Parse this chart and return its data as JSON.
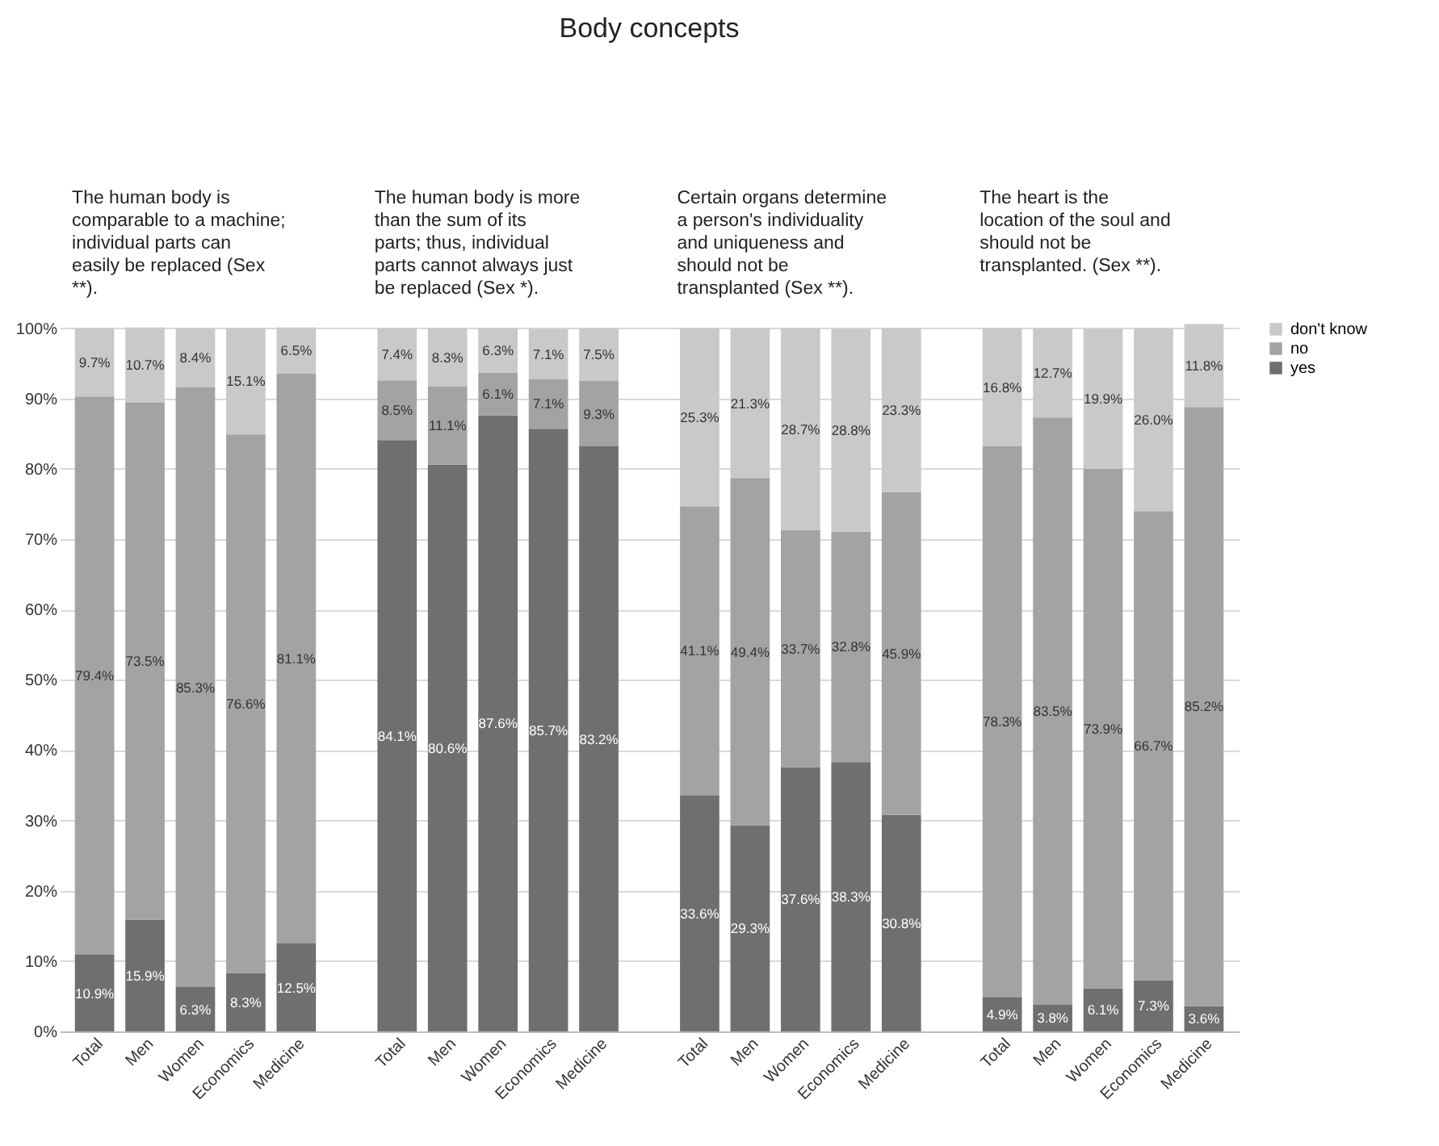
{
  "chart_data": {
    "type": "bar",
    "stacked": true,
    "title": "Body concepts",
    "annotations": [
      "The human body is comparable to a machine; individual parts can easily be replaced (Sex **).",
      "The human body is more than the sum of its parts; thus, individual parts cannot always just be replaced (Sex *).",
      "Certain organs determine a person's individuality and uniqueness and should not be transplanted (Sex **).",
      "The heart is the location of the soul and should not be transplanted. (Sex **)."
    ],
    "categories": [
      "Total",
      "Men",
      "Women",
      "Economics",
      "Medicine",
      null,
      "Total",
      "Men",
      "Women",
      "Economics",
      "Medicine",
      null,
      "Total",
      "Men",
      "Women",
      "Economics",
      "Medicine",
      null,
      "Total",
      "Men",
      "Women",
      "Economics",
      "Medicine"
    ],
    "ylim": [
      0,
      101
    ],
    "yticks": [
      {
        "value": 0,
        "label": "0%"
      },
      {
        "value": 10,
        "label": "10%"
      },
      {
        "value": 20,
        "label": "20%"
      },
      {
        "value": 30,
        "label": "30%"
      },
      {
        "value": 40,
        "label": "40%"
      },
      {
        "value": 50,
        "label": "50%"
      },
      {
        "value": 60,
        "label": "60%"
      },
      {
        "value": 70,
        "label": "70%"
      },
      {
        "value": 80,
        "label": "80%"
      },
      {
        "value": 90,
        "label": "90%"
      },
      {
        "value": 100,
        "label": "100%"
      }
    ],
    "grid": "y",
    "legend": "right",
    "series": [
      {
        "name": "yes",
        "color": "#6f6f6f",
        "values": [
          10.9,
          15.9,
          6.3,
          8.3,
          12.5,
          null,
          84.1,
          80.6,
          87.6,
          85.7,
          83.2,
          null,
          33.6,
          29.3,
          37.6,
          38.3,
          30.8,
          null,
          4.9,
          3.8,
          6.1,
          7.3,
          3.6
        ],
        "value_labels": [
          "10.9%",
          "15.9%",
          "6.3%",
          "8.3%",
          "12.5%",
          null,
          "84.1%",
          "80.6%",
          "87.6%",
          "85.7%",
          "83.2%",
          null,
          "33.6%",
          "29.3%",
          "37.6%",
          "38.3%",
          "30.8%",
          null,
          "4.9%",
          "3.8%",
          "6.1%",
          "7.3%",
          "3.6%"
        ]
      },
      {
        "name": "no",
        "color": "#a3a3a3",
        "values": [
          79.4,
          73.5,
          85.3,
          76.6,
          81.1,
          null,
          8.5,
          11.1,
          6.1,
          7.1,
          9.3,
          null,
          41.1,
          49.4,
          33.7,
          32.8,
          45.9,
          null,
          78.3,
          83.5,
          73.9,
          66.7,
          85.2
        ],
        "value_labels": [
          "79.4%",
          "73.5%",
          "85.3%",
          "76.6%",
          "81.1%",
          null,
          "8.5%",
          "11.1%",
          "6.1%",
          "7.1%",
          "9.3%",
          null,
          "41.1%",
          "49.4%",
          "33.7%",
          "32.8%",
          "45.9%",
          null,
          "78.3%",
          "83.5%",
          "73.9%",
          "66.7%",
          "85.2%"
        ]
      },
      {
        "name": "don't know",
        "color": "#c9c9c9",
        "values": [
          9.7,
          10.7,
          8.4,
          15.1,
          6.5,
          null,
          7.4,
          8.3,
          6.3,
          7.1,
          7.5,
          null,
          25.3,
          21.3,
          28.7,
          28.8,
          23.3,
          null,
          16.8,
          12.7,
          19.9,
          26.0,
          11.8
        ],
        "value_labels": [
          "9.7%",
          "10.7%",
          "8.4%",
          "15.1%",
          "6.5%",
          null,
          "7.4%",
          "8.3%",
          "6.3%",
          "7.1%",
          "7.5%",
          null,
          "25.3%",
          "21.3%",
          "28.7%",
          "28.8%",
          "23.3%",
          null,
          "16.8%",
          "12.7%",
          "19.9%",
          "26.0%",
          "11.8%"
        ]
      }
    ]
  }
}
